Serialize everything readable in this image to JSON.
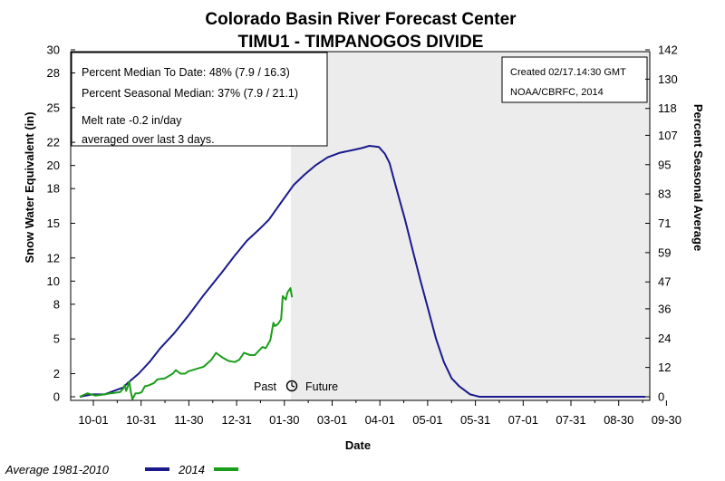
{
  "chart_data": {
    "type": "line",
    "title": "Colorado Basin River Forecast Center",
    "subtitle": "TIMU1 - TIMPANOGOS DIVIDE",
    "xlabel": "Date",
    "ylabel": "Snow Water Equivalent (in)",
    "y2label": "Percent Seasonal Average",
    "categories": [
      "10-01",
      "10-31",
      "11-30",
      "12-31",
      "01-30",
      "03-01",
      "04-01",
      "05-01",
      "05-31",
      "07-01",
      "07-31",
      "08-30",
      "09-30"
    ],
    "ylim": [
      0,
      30
    ],
    "yticks": [
      0,
      2,
      5,
      8,
      10,
      12,
      15,
      18,
      20,
      22,
      25,
      28,
      30
    ],
    "y2lim": [
      0,
      142
    ],
    "y2ticks": [
      0,
      12,
      24,
      36,
      47,
      59,
      71,
      83,
      95,
      107,
      118,
      130,
      142
    ],
    "grid": false,
    "future_shaded_from": "02-17",
    "past_label": "Past",
    "future_label": "Future",
    "series": [
      {
        "name": "Average 1981-2010",
        "color": "#1a1a8c",
        "x": [
          0,
          8,
          16,
          22,
          28,
          31,
          38,
          45,
          52,
          61,
          70,
          80,
          92,
          100,
          108,
          116,
          122,
          130,
          138,
          145,
          152,
          160,
          168,
          175,
          182,
          187,
          193,
          197,
          200,
          202,
          205,
          210,
          215,
          220,
          225,
          230,
          235,
          240,
          245,
          248,
          250,
          252,
          255,
          258,
          262,
          268,
          275,
          300,
          330,
          365
        ],
        "values": [
          0,
          0.2,
          0.2,
          0.5,
          0.8,
          1.2,
          2.0,
          3.0,
          4.2,
          5.5,
          7.0,
          8.8,
          10.8,
          12.2,
          13.5,
          14.5,
          15.3,
          16.8,
          18.3,
          19.2,
          20.0,
          20.7,
          21.1,
          21.3,
          21.5,
          21.7,
          21.6,
          21.0,
          20.2,
          19.2,
          17.7,
          15.3,
          12.6,
          10.0,
          7.5,
          5.0,
          3.0,
          1.6,
          0.9,
          0.6,
          0.4,
          0.2,
          0.1,
          0,
          0,
          0,
          0,
          0,
          0,
          0
        ]
      },
      {
        "name": "2014",
        "color": "#1a9e1a",
        "x": [
          0,
          5,
          10,
          16,
          20,
          26,
          28,
          29,
          30,
          32,
          33,
          34,
          36,
          38,
          40,
          42,
          45,
          48,
          50,
          55,
          60,
          62,
          65,
          68,
          70,
          75,
          80,
          85,
          88,
          92,
          96,
          100,
          103,
          106,
          110,
          113,
          115,
          118,
          120,
          123,
          125,
          126,
          128,
          130,
          131,
          133,
          134,
          136,
          137
        ],
        "values": [
          0,
          0.3,
          0.1,
          0.2,
          0.3,
          0.4,
          0.7,
          1.0,
          0.5,
          1.3,
          0.4,
          -0.2,
          0.3,
          0.3,
          0.4,
          0.9,
          1.0,
          1.2,
          1.5,
          1.6,
          2.0,
          2.3,
          2.0,
          2.0,
          2.2,
          2.4,
          2.6,
          3.2,
          3.8,
          3.4,
          3.1,
          3.0,
          3.2,
          3.8,
          3.6,
          3.6,
          3.9,
          4.3,
          4.2,
          4.9,
          6.4,
          6.1,
          6.3,
          6.7,
          8.7,
          8.4,
          9.0,
          9.4,
          8.6
        ]
      }
    ]
  },
  "info_box": {
    "line1": "Percent Median To Date: 48% (7.9 / 16.3)",
    "line2": "Percent Seasonal Median: 37% (7.9 / 21.1)",
    "line3": "Melt rate -0.2 in/day",
    "line4": "averaged over last 3 days."
  },
  "created_box": {
    "line1": "Created 02/17.14:30 GMT",
    "line2": "NOAA/CBRFC, 2014"
  },
  "legend": {
    "avg_label": "Average 1981-2010",
    "year_label": "2014"
  },
  "colors": {
    "future_shade": "#ececec",
    "average_line": "#1a1a8c",
    "current_line": "#1a9e1a"
  }
}
